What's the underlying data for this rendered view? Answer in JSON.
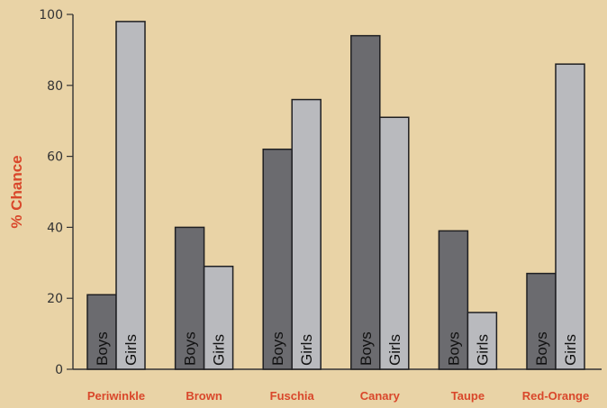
{
  "chart_data": {
    "type": "bar",
    "title": "",
    "xlabel": "",
    "ylabel": "% Chance",
    "ylim": [
      0,
      100
    ],
    "yticks": [
      0,
      20,
      40,
      60,
      80,
      100
    ],
    "grid": false,
    "categories": [
      "Periwinkle",
      "Brown",
      "Fuschia",
      "Canary",
      "Taupe",
      "Red-Orange"
    ],
    "series": [
      {
        "name": "Boys",
        "values": [
          21,
          40,
          62,
          94,
          39,
          27
        ]
      },
      {
        "name": "Girls",
        "values": [
          98,
          29,
          76,
          71,
          16,
          86
        ]
      }
    ],
    "colors": {
      "background": "#e9d3a6",
      "boys_bar": "#6b6b6f",
      "girls_bar": "#b9babe",
      "bar_outline": "#1f1f22",
      "axis": "#333333",
      "category_text": "#d9472b",
      "ylabel_text": "#d9472b",
      "tick_text": "#333333",
      "bar_label_text": "#111111"
    }
  }
}
